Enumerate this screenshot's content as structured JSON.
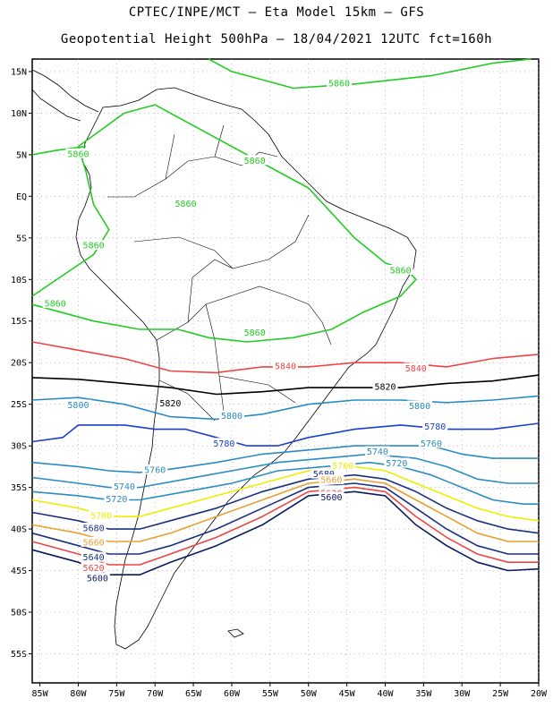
{
  "title_line1": "CPTEC/INPE/MCT —  Eta Model 15km — GFS",
  "title_line2": "Geopotential Height 500hPa — 18/04/2021 12UTC fct=160h",
  "map": {
    "lat_range": [
      -58.5,
      16.5
    ],
    "lon_range": [
      -86,
      -20
    ],
    "lat_ticks": [
      {
        "value": 15,
        "label": "15N"
      },
      {
        "value": 10,
        "label": "10N"
      },
      {
        "value": 5,
        "label": "5N"
      },
      {
        "value": 0,
        "label": "EQ"
      },
      {
        "value": -5,
        "label": "5S"
      },
      {
        "value": -10,
        "label": "10S"
      },
      {
        "value": -15,
        "label": "15S"
      },
      {
        "value": -20,
        "label": "20S"
      },
      {
        "value": -25,
        "label": "25S"
      },
      {
        "value": -30,
        "label": "30S"
      },
      {
        "value": -35,
        "label": "35S"
      },
      {
        "value": -40,
        "label": "40S"
      },
      {
        "value": -45,
        "label": "45S"
      },
      {
        "value": -50,
        "label": "50S"
      },
      {
        "value": -55,
        "label": "55S"
      }
    ],
    "lon_ticks": [
      {
        "value": -85,
        "label": "85W"
      },
      {
        "value": -80,
        "label": "80W"
      },
      {
        "value": -75,
        "label": "75W"
      },
      {
        "value": -70,
        "label": "70W"
      },
      {
        "value": -65,
        "label": "65W"
      },
      {
        "value": -60,
        "label": "60W"
      },
      {
        "value": -55,
        "label": "55W"
      },
      {
        "value": -50,
        "label": "50W"
      },
      {
        "value": -45,
        "label": "45W"
      },
      {
        "value": -40,
        "label": "40W"
      },
      {
        "value": -35,
        "label": "35W"
      },
      {
        "value": -30,
        "label": "30W"
      },
      {
        "value": -25,
        "label": "25W"
      },
      {
        "value": -20,
        "label": "20W"
      }
    ]
  },
  "contours": [
    {
      "value": "5860",
      "color": "#22cc22",
      "points": [
        [
          -86,
          -12
        ],
        [
          -82,
          -9.5
        ],
        [
          -78,
          -7
        ],
        [
          -76,
          -4
        ],
        [
          -78,
          -1
        ],
        [
          -79,
          3
        ],
        [
          -80,
          6
        ],
        [
          -77,
          8
        ],
        [
          -74,
          10
        ],
        [
          -70,
          11
        ],
        [
          -66,
          9
        ],
        [
          -62,
          7
        ],
        [
          -58,
          5
        ],
        [
          -54,
          3
        ],
        [
          -50,
          1
        ],
        [
          -47,
          -2
        ],
        [
          -44,
          -5
        ],
        [
          -40,
          -8
        ],
        [
          -37,
          -9
        ],
        [
          -36,
          -10
        ],
        [
          -38,
          -12
        ],
        [
          -43,
          -14
        ],
        [
          -47,
          -16
        ],
        [
          -52,
          -17
        ],
        [
          -58,
          -17.5
        ],
        [
          -63,
          -17
        ],
        [
          -67,
          -16
        ],
        [
          -72,
          -16
        ],
        [
          -78,
          -15
        ],
        [
          -86,
          -13
        ]
      ],
      "labels": [
        [
          -78,
          -6,
          "5860"
        ],
        [
          -80,
          5,
          "5860"
        ],
        [
          -83,
          -13,
          "5860"
        ],
        [
          -66,
          -1,
          "5860"
        ],
        [
          -57,
          -16.5,
          "5860"
        ],
        [
          -38,
          -9,
          "5860"
        ],
        [
          -57,
          4.2,
          "5860"
        ]
      ]
    },
    {
      "value": "5860",
      "color": "#22cc22",
      "points": [
        [
          -86,
          5
        ],
        [
          -83,
          5.5
        ],
        [
          -79,
          6
        ]
      ],
      "labels": []
    },
    {
      "value": "5860",
      "color": "#22cc22",
      "points": [
        [
          -63,
          16.5
        ],
        [
          -60,
          15
        ],
        [
          -52,
          13
        ],
        [
          -44,
          13.5
        ],
        [
          -34,
          14.5
        ],
        [
          -26,
          16
        ],
        [
          -21,
          16.5
        ]
      ],
      "labels": [
        [
          -46,
          13.5,
          "5860"
        ]
      ]
    },
    {
      "value": "5840",
      "color": "#ee4444",
      "points": [
        [
          -86,
          -17.5
        ],
        [
          -80,
          -18.5
        ],
        [
          -74,
          -19.5
        ],
        [
          -68,
          -21
        ],
        [
          -62,
          -21.2
        ],
        [
          -56,
          -20.5
        ],
        [
          -50,
          -20.5
        ],
        [
          -44,
          -20
        ],
        [
          -38,
          -20
        ],
        [
          -32,
          -20.5
        ],
        [
          -26,
          -19.5
        ],
        [
          -20,
          -19
        ]
      ],
      "labels": [
        [
          -53,
          -20.5,
          "5840"
        ],
        [
          -36,
          -20.8,
          "5840"
        ]
      ]
    },
    {
      "value": "5820",
      "color": "#000000",
      "points": [
        [
          -86,
          -21.8
        ],
        [
          -80,
          -22
        ],
        [
          -74,
          -22.5
        ],
        [
          -68,
          -23
        ],
        [
          -62,
          -23.8
        ],
        [
          -56,
          -23.5
        ],
        [
          -50,
          -23
        ],
        [
          -44,
          -23
        ],
        [
          -38,
          -23
        ],
        [
          -32,
          -22.5
        ],
        [
          -26,
          -22.2
        ],
        [
          -20,
          -21.5
        ]
      ],
      "labels": [
        [
          -68,
          -25,
          "5820"
        ],
        [
          -40,
          -23,
          "5820"
        ]
      ]
    },
    {
      "value": "5800",
      "color": "#2a8cc2",
      "points": [
        [
          -86,
          -24.5
        ],
        [
          -80,
          -24.2
        ],
        [
          -74,
          -25
        ],
        [
          -68,
          -26.5
        ],
        [
          -62,
          -26.8
        ],
        [
          -56,
          -26.2
        ],
        [
          -50,
          -25
        ],
        [
          -44,
          -24.5
        ],
        [
          -38,
          -24.5
        ],
        [
          -32,
          -24.8
        ],
        [
          -26,
          -24.5
        ],
        [
          -20,
          -24
        ]
      ],
      "labels": [
        [
          -80,
          -25.2,
          "5800"
        ],
        [
          -60,
          -26.5,
          "5800"
        ],
        [
          -35.5,
          -25.3,
          "5800"
        ]
      ]
    },
    {
      "value": "5780",
      "color": "#1a3fcf",
      "points": [
        [
          -86,
          -29.5
        ],
        [
          -82,
          -29
        ],
        [
          -80,
          -27.5
        ],
        [
          -74,
          -27.5
        ],
        [
          -70,
          -28
        ],
        [
          -66,
          -28
        ],
        [
          -62,
          -29
        ],
        [
          -58,
          -30
        ],
        [
          -54,
          -30
        ],
        [
          -50,
          -29
        ],
        [
          -44,
          -28
        ],
        [
          -38,
          -27.5
        ],
        [
          -32,
          -28
        ],
        [
          -26,
          -28
        ],
        [
          -20,
          -27.3
        ]
      ],
      "labels": [
        [
          -61,
          -29.8,
          "5780"
        ],
        [
          -33.5,
          -27.8,
          "5780"
        ]
      ]
    },
    {
      "value": "5760",
      "color": "#2a8cc2",
      "points": [
        [
          -86,
          -32
        ],
        [
          -80,
          -32.5
        ],
        [
          -76,
          -33
        ],
        [
          -72,
          -33.2
        ],
        [
          -68,
          -32.8
        ],
        [
          -62,
          -32
        ],
        [
          -56,
          -31
        ],
        [
          -50,
          -30.5
        ],
        [
          -44,
          -30
        ],
        [
          -38,
          -30
        ],
        [
          -34,
          -30
        ],
        [
          -30,
          -31
        ],
        [
          -26,
          -31.5
        ],
        [
          -20,
          -31.5
        ]
      ],
      "labels": [
        [
          -70,
          -33,
          "5760"
        ],
        [
          -34,
          -29.8,
          "5760"
        ]
      ]
    },
    {
      "value": "5740",
      "color": "#2a8cc2",
      "points": [
        [
          -86,
          -33.8
        ],
        [
          -80,
          -34.5
        ],
        [
          -76,
          -35
        ],
        [
          -72,
          -35
        ],
        [
          -66,
          -34
        ],
        [
          -60,
          -33
        ],
        [
          -54,
          -32
        ],
        [
          -48,
          -31.5
        ],
        [
          -42,
          -31
        ],
        [
          -36,
          -31.5
        ],
        [
          -32,
          -32.5
        ],
        [
          -28,
          -34
        ],
        [
          -24,
          -34.5
        ],
        [
          -20,
          -34.5
        ]
      ],
      "labels": [
        [
          -74,
          -35,
          "5740"
        ],
        [
          -41,
          -30.8,
          "5740"
        ]
      ]
    },
    {
      "value": "5720",
      "color": "#2a8cc2",
      "points": [
        [
          -86,
          -35.5
        ],
        [
          -80,
          -36
        ],
        [
          -76,
          -36.5
        ],
        [
          -72,
          -36.5
        ],
        [
          -66,
          -35.5
        ],
        [
          -60,
          -34.5
        ],
        [
          -54,
          -33
        ],
        [
          -48,
          -32.5
        ],
        [
          -42,
          -32
        ],
        [
          -38,
          -32.5
        ],
        [
          -34,
          -33.5
        ],
        [
          -30,
          -35
        ],
        [
          -26,
          -36.5
        ],
        [
          -22,
          -37
        ],
        [
          -20,
          -37
        ]
      ],
      "labels": [
        [
          -75,
          -36.5,
          "5720"
        ],
        [
          -38.5,
          -32.2,
          "5720"
        ]
      ]
    },
    {
      "value": "5700",
      "color": "#eeee00",
      "points": [
        [
          -86,
          -36.5
        ],
        [
          -80,
          -37.5
        ],
        [
          -76,
          -38.5
        ],
        [
          -72,
          -38.5
        ],
        [
          -68,
          -37.5
        ],
        [
          -62,
          -36
        ],
        [
          -56,
          -34.5
        ],
        [
          -50,
          -33
        ],
        [
          -44,
          -32.5
        ],
        [
          -40,
          -33
        ],
        [
          -36,
          -34.5
        ],
        [
          -32,
          -36
        ],
        [
          -28,
          -37.5
        ],
        [
          -24,
          -38.5
        ],
        [
          -20,
          -39
        ]
      ],
      "labels": [
        [
          -77,
          -38.5,
          "5700"
        ],
        [
          -45.5,
          -32.5,
          "5700"
        ]
      ]
    },
    {
      "value": "5680",
      "color": "#1a3080",
      "points": [
        [
          -86,
          -38
        ],
        [
          -80,
          -39
        ],
        [
          -76,
          -40
        ],
        [
          -72,
          -40
        ],
        [
          -68,
          -39
        ],
        [
          -62,
          -37.5
        ],
        [
          -56,
          -35.5
        ],
        [
          -50,
          -34
        ],
        [
          -44,
          -33.5
        ],
        [
          -40,
          -34
        ],
        [
          -36,
          -35.5
        ],
        [
          -32,
          -37.5
        ],
        [
          -28,
          -39
        ],
        [
          -24,
          -40
        ],
        [
          -20,
          -40.5
        ]
      ],
      "labels": [
        [
          -78,
          -40,
          "5680"
        ],
        [
          -48,
          -33.5,
          "5680"
        ]
      ]
    },
    {
      "value": "5660",
      "color": "#e8a030",
      "points": [
        [
          -86,
          -39.5
        ],
        [
          -80,
          -40.5
        ],
        [
          -76,
          -41.5
        ],
        [
          -72,
          -41.5
        ],
        [
          -68,
          -40.5
        ],
        [
          -62,
          -38.5
        ],
        [
          -56,
          -36.5
        ],
        [
          -50,
          -34.5
        ],
        [
          -44,
          -34
        ],
        [
          -40,
          -34.5
        ],
        [
          -36,
          -36.5
        ],
        [
          -32,
          -38.5
        ],
        [
          -28,
          -40.5
        ],
        [
          -24,
          -41.5
        ],
        [
          -20,
          -41.5
        ]
      ],
      "labels": [
        [
          -78,
          -41.7,
          "5660"
        ],
        [
          -47,
          -34.2,
          "5660"
        ]
      ]
    },
    {
      "value": "5640",
      "color": "#1a3080",
      "points": [
        [
          -86,
          -40.5
        ],
        [
          -80,
          -42
        ],
        [
          -76,
          -43
        ],
        [
          -72,
          -43
        ],
        [
          -68,
          -42
        ],
        [
          -62,
          -40
        ],
        [
          -56,
          -37.5
        ],
        [
          -50,
          -35
        ],
        [
          -44,
          -34.5
        ],
        [
          -40,
          -35
        ],
        [
          -36,
          -37.5
        ],
        [
          -32,
          -40
        ],
        [
          -28,
          -42
        ],
        [
          -24,
          -43
        ],
        [
          -20,
          -43
        ]
      ],
      "labels": [
        [
          -78,
          -43.5,
          "5640"
        ],
        [
          -47,
          -35.5,
          "5640"
        ]
      ]
    },
    {
      "value": "5620",
      "color": "#ee4444",
      "points": [
        [
          -86,
          -41.5
        ],
        [
          -80,
          -43
        ],
        [
          -76,
          -44.3
        ],
        [
          -72,
          -44.3
        ],
        [
          -68,
          -43
        ],
        [
          -62,
          -41
        ],
        [
          -56,
          -38.5
        ],
        [
          -50,
          -35.5
        ],
        [
          -44,
          -35
        ],
        [
          -40,
          -35.5
        ],
        [
          -36,
          -38.5
        ],
        [
          -32,
          -41
        ],
        [
          -28,
          -43
        ],
        [
          -24,
          -44
        ],
        [
          -20,
          -44
        ]
      ],
      "labels": [
        [
          -78,
          -44.8,
          "5620"
        ],
        [
          -47,
          -35.8,
          "5620"
        ]
      ]
    },
    {
      "value": "5600",
      "color": "#0a1a60",
      "points": [
        [
          -86,
          -42.5
        ],
        [
          -80,
          -44
        ],
        [
          -76,
          -45.5
        ],
        [
          -72,
          -45.5
        ],
        [
          -68,
          -44
        ],
        [
          -62,
          -42
        ],
        [
          -56,
          -39.5
        ],
        [
          -50,
          -36
        ],
        [
          -44,
          -35.5
        ],
        [
          -40,
          -36
        ],
        [
          -36,
          -39.5
        ],
        [
          -32,
          -42
        ],
        [
          -28,
          -44
        ],
        [
          -24,
          -45
        ],
        [
          -20,
          -44.8
        ]
      ],
      "labels": [
        [
          -77.5,
          -46,
          "5600"
        ],
        [
          -47,
          -36.3,
          "5600"
        ]
      ]
    }
  ]
}
